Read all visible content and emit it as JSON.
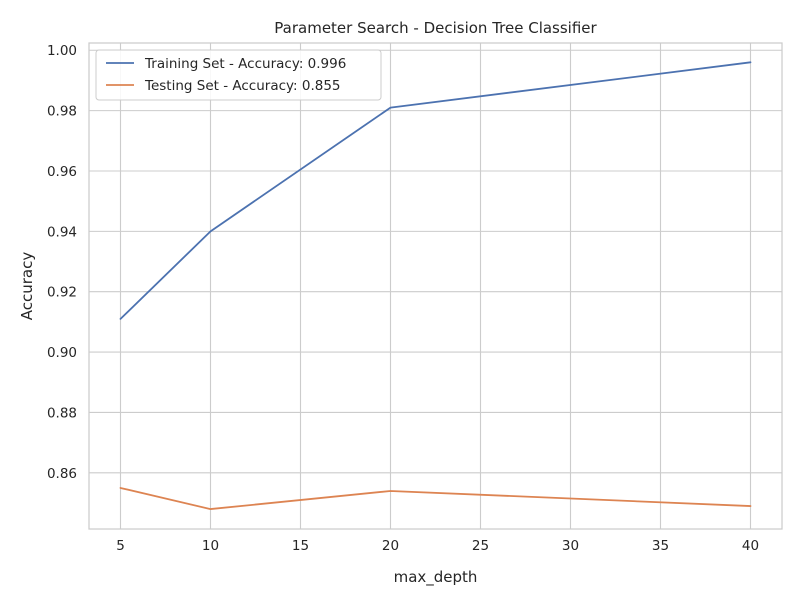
{
  "chart_data": {
    "type": "line",
    "title": "Parameter Search - Decision Tree Classifier",
    "xlabel": "max_depth",
    "ylabel": "Accuracy",
    "x": [
      5,
      10,
      20,
      40
    ],
    "xlim": [
      3.25,
      41.75
    ],
    "ylim": [
      0.8414,
      1.0024
    ],
    "xticks": [
      5,
      10,
      15,
      20,
      25,
      30,
      35,
      40
    ],
    "yticks": [
      0.86,
      0.88,
      0.9,
      0.92,
      0.94,
      0.96,
      0.98,
      1.0
    ],
    "ytick_labels": [
      "0.86",
      "0.88",
      "0.90",
      "0.92",
      "0.94",
      "0.96",
      "0.98",
      "1.00"
    ],
    "grid": true,
    "legend_position": "top-left",
    "series": [
      {
        "name": "Training Set - Accuracy: 0.996",
        "color": "#4c72b0",
        "values": [
          0.911,
          0.94,
          0.981,
          0.996
        ]
      },
      {
        "name": "Testing Set - Accuracy: 0.855",
        "color": "#dd8452",
        "values": [
          0.855,
          0.848,
          0.854,
          0.849
        ]
      }
    ]
  }
}
